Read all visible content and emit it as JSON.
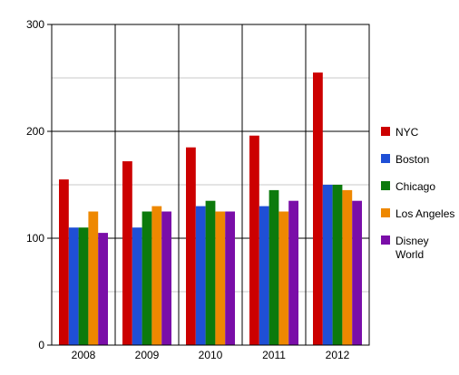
{
  "chart_data": {
    "type": "bar",
    "categories": [
      "2008",
      "2009",
      "2010",
      "2011",
      "2012"
    ],
    "ylim": [
      0,
      300
    ],
    "yticks": [
      0,
      100,
      200,
      300
    ],
    "grid": true,
    "legend_position": "right",
    "series": [
      {
        "name": "NYC",
        "color": "#cc0000",
        "values": [
          155,
          172,
          185,
          196,
          255
        ]
      },
      {
        "name": "Boston",
        "color": "#1f4fd6",
        "values": [
          110,
          110,
          130,
          130,
          150
        ]
      },
      {
        "name": "Chicago",
        "color": "#0c7a0c",
        "values": [
          110,
          125,
          135,
          145,
          150
        ]
      },
      {
        "name": "Los Angeles",
        "color": "#ee8800",
        "values": [
          125,
          130,
          125,
          125,
          145
        ]
      },
      {
        "name": "Disney World",
        "color": "#7a0ea8",
        "values": [
          105,
          125,
          125,
          135,
          135
        ]
      }
    ]
  }
}
